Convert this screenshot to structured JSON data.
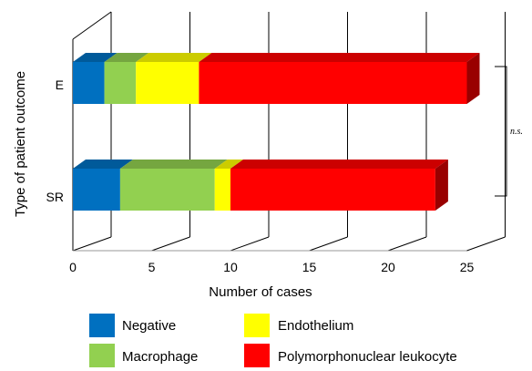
{
  "chart_data": {
    "type": "bar",
    "orientation": "horizontal",
    "stacked": true,
    "style": "3d",
    "categories": [
      "E",
      "SR"
    ],
    "series": [
      {
        "name": "Negative",
        "color": "#0070C0",
        "values": [
          2,
          3
        ]
      },
      {
        "name": "Macrophage",
        "color": "#92D050",
        "values": [
          2,
          6
        ]
      },
      {
        "name": "Endothelium",
        "color": "#FFFF00",
        "values": [
          4,
          1
        ]
      },
      {
        "name": "Polymorphonuclear leukocyte",
        "color": "#FF0000",
        "values": [
          17,
          13
        ]
      }
    ],
    "xlabel": "Number of cases",
    "ylabel": "Type of patient outcome",
    "xlim": [
      0,
      25
    ],
    "xticks": [
      "0",
      "5",
      "10",
      "15",
      "20",
      "25"
    ],
    "grid": true,
    "legend_position": "bottom",
    "annotation": "n.s."
  }
}
